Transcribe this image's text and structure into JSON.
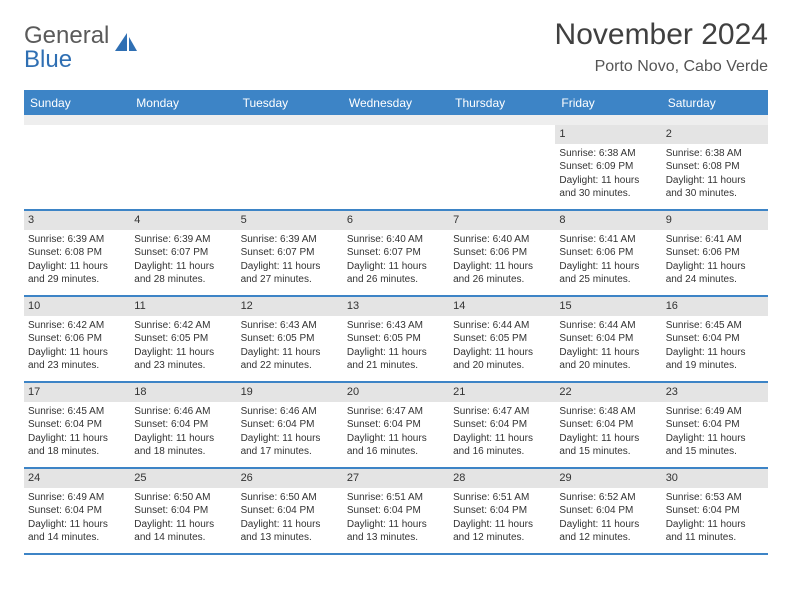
{
  "logo": {
    "textGray": "General",
    "textBlue": "Blue"
  },
  "title": "November 2024",
  "location": "Porto Novo, Cabo Verde",
  "colors": {
    "brand": "#3d84c6",
    "logoBlue": "#2f6fb3",
    "dayBar": "#e4e4e4",
    "text": "#333333"
  },
  "dayNames": [
    "Sunday",
    "Monday",
    "Tuesday",
    "Wednesday",
    "Thursday",
    "Friday",
    "Saturday"
  ],
  "weeks": [
    [
      null,
      null,
      null,
      null,
      null,
      {
        "n": "1",
        "sunrise": "Sunrise: 6:38 AM",
        "sunset": "Sunset: 6:09 PM",
        "day1": "Daylight: 11 hours",
        "day2": "and 30 minutes."
      },
      {
        "n": "2",
        "sunrise": "Sunrise: 6:38 AM",
        "sunset": "Sunset: 6:08 PM",
        "day1": "Daylight: 11 hours",
        "day2": "and 30 minutes."
      }
    ],
    [
      {
        "n": "3",
        "sunrise": "Sunrise: 6:39 AM",
        "sunset": "Sunset: 6:08 PM",
        "day1": "Daylight: 11 hours",
        "day2": "and 29 minutes."
      },
      {
        "n": "4",
        "sunrise": "Sunrise: 6:39 AM",
        "sunset": "Sunset: 6:07 PM",
        "day1": "Daylight: 11 hours",
        "day2": "and 28 minutes."
      },
      {
        "n": "5",
        "sunrise": "Sunrise: 6:39 AM",
        "sunset": "Sunset: 6:07 PM",
        "day1": "Daylight: 11 hours",
        "day2": "and 27 minutes."
      },
      {
        "n": "6",
        "sunrise": "Sunrise: 6:40 AM",
        "sunset": "Sunset: 6:07 PM",
        "day1": "Daylight: 11 hours",
        "day2": "and 26 minutes."
      },
      {
        "n": "7",
        "sunrise": "Sunrise: 6:40 AM",
        "sunset": "Sunset: 6:06 PM",
        "day1": "Daylight: 11 hours",
        "day2": "and 26 minutes."
      },
      {
        "n": "8",
        "sunrise": "Sunrise: 6:41 AM",
        "sunset": "Sunset: 6:06 PM",
        "day1": "Daylight: 11 hours",
        "day2": "and 25 minutes."
      },
      {
        "n": "9",
        "sunrise": "Sunrise: 6:41 AM",
        "sunset": "Sunset: 6:06 PM",
        "day1": "Daylight: 11 hours",
        "day2": "and 24 minutes."
      }
    ],
    [
      {
        "n": "10",
        "sunrise": "Sunrise: 6:42 AM",
        "sunset": "Sunset: 6:06 PM",
        "day1": "Daylight: 11 hours",
        "day2": "and 23 minutes."
      },
      {
        "n": "11",
        "sunrise": "Sunrise: 6:42 AM",
        "sunset": "Sunset: 6:05 PM",
        "day1": "Daylight: 11 hours",
        "day2": "and 23 minutes."
      },
      {
        "n": "12",
        "sunrise": "Sunrise: 6:43 AM",
        "sunset": "Sunset: 6:05 PM",
        "day1": "Daylight: 11 hours",
        "day2": "and 22 minutes."
      },
      {
        "n": "13",
        "sunrise": "Sunrise: 6:43 AM",
        "sunset": "Sunset: 6:05 PM",
        "day1": "Daylight: 11 hours",
        "day2": "and 21 minutes."
      },
      {
        "n": "14",
        "sunrise": "Sunrise: 6:44 AM",
        "sunset": "Sunset: 6:05 PM",
        "day1": "Daylight: 11 hours",
        "day2": "and 20 minutes."
      },
      {
        "n": "15",
        "sunrise": "Sunrise: 6:44 AM",
        "sunset": "Sunset: 6:04 PM",
        "day1": "Daylight: 11 hours",
        "day2": "and 20 minutes."
      },
      {
        "n": "16",
        "sunrise": "Sunrise: 6:45 AM",
        "sunset": "Sunset: 6:04 PM",
        "day1": "Daylight: 11 hours",
        "day2": "and 19 minutes."
      }
    ],
    [
      {
        "n": "17",
        "sunrise": "Sunrise: 6:45 AM",
        "sunset": "Sunset: 6:04 PM",
        "day1": "Daylight: 11 hours",
        "day2": "and 18 minutes."
      },
      {
        "n": "18",
        "sunrise": "Sunrise: 6:46 AM",
        "sunset": "Sunset: 6:04 PM",
        "day1": "Daylight: 11 hours",
        "day2": "and 18 minutes."
      },
      {
        "n": "19",
        "sunrise": "Sunrise: 6:46 AM",
        "sunset": "Sunset: 6:04 PM",
        "day1": "Daylight: 11 hours",
        "day2": "and 17 minutes."
      },
      {
        "n": "20",
        "sunrise": "Sunrise: 6:47 AM",
        "sunset": "Sunset: 6:04 PM",
        "day1": "Daylight: 11 hours",
        "day2": "and 16 minutes."
      },
      {
        "n": "21",
        "sunrise": "Sunrise: 6:47 AM",
        "sunset": "Sunset: 6:04 PM",
        "day1": "Daylight: 11 hours",
        "day2": "and 16 minutes."
      },
      {
        "n": "22",
        "sunrise": "Sunrise: 6:48 AM",
        "sunset": "Sunset: 6:04 PM",
        "day1": "Daylight: 11 hours",
        "day2": "and 15 minutes."
      },
      {
        "n": "23",
        "sunrise": "Sunrise: 6:49 AM",
        "sunset": "Sunset: 6:04 PM",
        "day1": "Daylight: 11 hours",
        "day2": "and 15 minutes."
      }
    ],
    [
      {
        "n": "24",
        "sunrise": "Sunrise: 6:49 AM",
        "sunset": "Sunset: 6:04 PM",
        "day1": "Daylight: 11 hours",
        "day2": "and 14 minutes."
      },
      {
        "n": "25",
        "sunrise": "Sunrise: 6:50 AM",
        "sunset": "Sunset: 6:04 PM",
        "day1": "Daylight: 11 hours",
        "day2": "and 14 minutes."
      },
      {
        "n": "26",
        "sunrise": "Sunrise: 6:50 AM",
        "sunset": "Sunset: 6:04 PM",
        "day1": "Daylight: 11 hours",
        "day2": "and 13 minutes."
      },
      {
        "n": "27",
        "sunrise": "Sunrise: 6:51 AM",
        "sunset": "Sunset: 6:04 PM",
        "day1": "Daylight: 11 hours",
        "day2": "and 13 minutes."
      },
      {
        "n": "28",
        "sunrise": "Sunrise: 6:51 AM",
        "sunset": "Sunset: 6:04 PM",
        "day1": "Daylight: 11 hours",
        "day2": "and 12 minutes."
      },
      {
        "n": "29",
        "sunrise": "Sunrise: 6:52 AM",
        "sunset": "Sunset: 6:04 PM",
        "day1": "Daylight: 11 hours",
        "day2": "and 12 minutes."
      },
      {
        "n": "30",
        "sunrise": "Sunrise: 6:53 AM",
        "sunset": "Sunset: 6:04 PM",
        "day1": "Daylight: 11 hours",
        "day2": "and 11 minutes."
      }
    ]
  ]
}
